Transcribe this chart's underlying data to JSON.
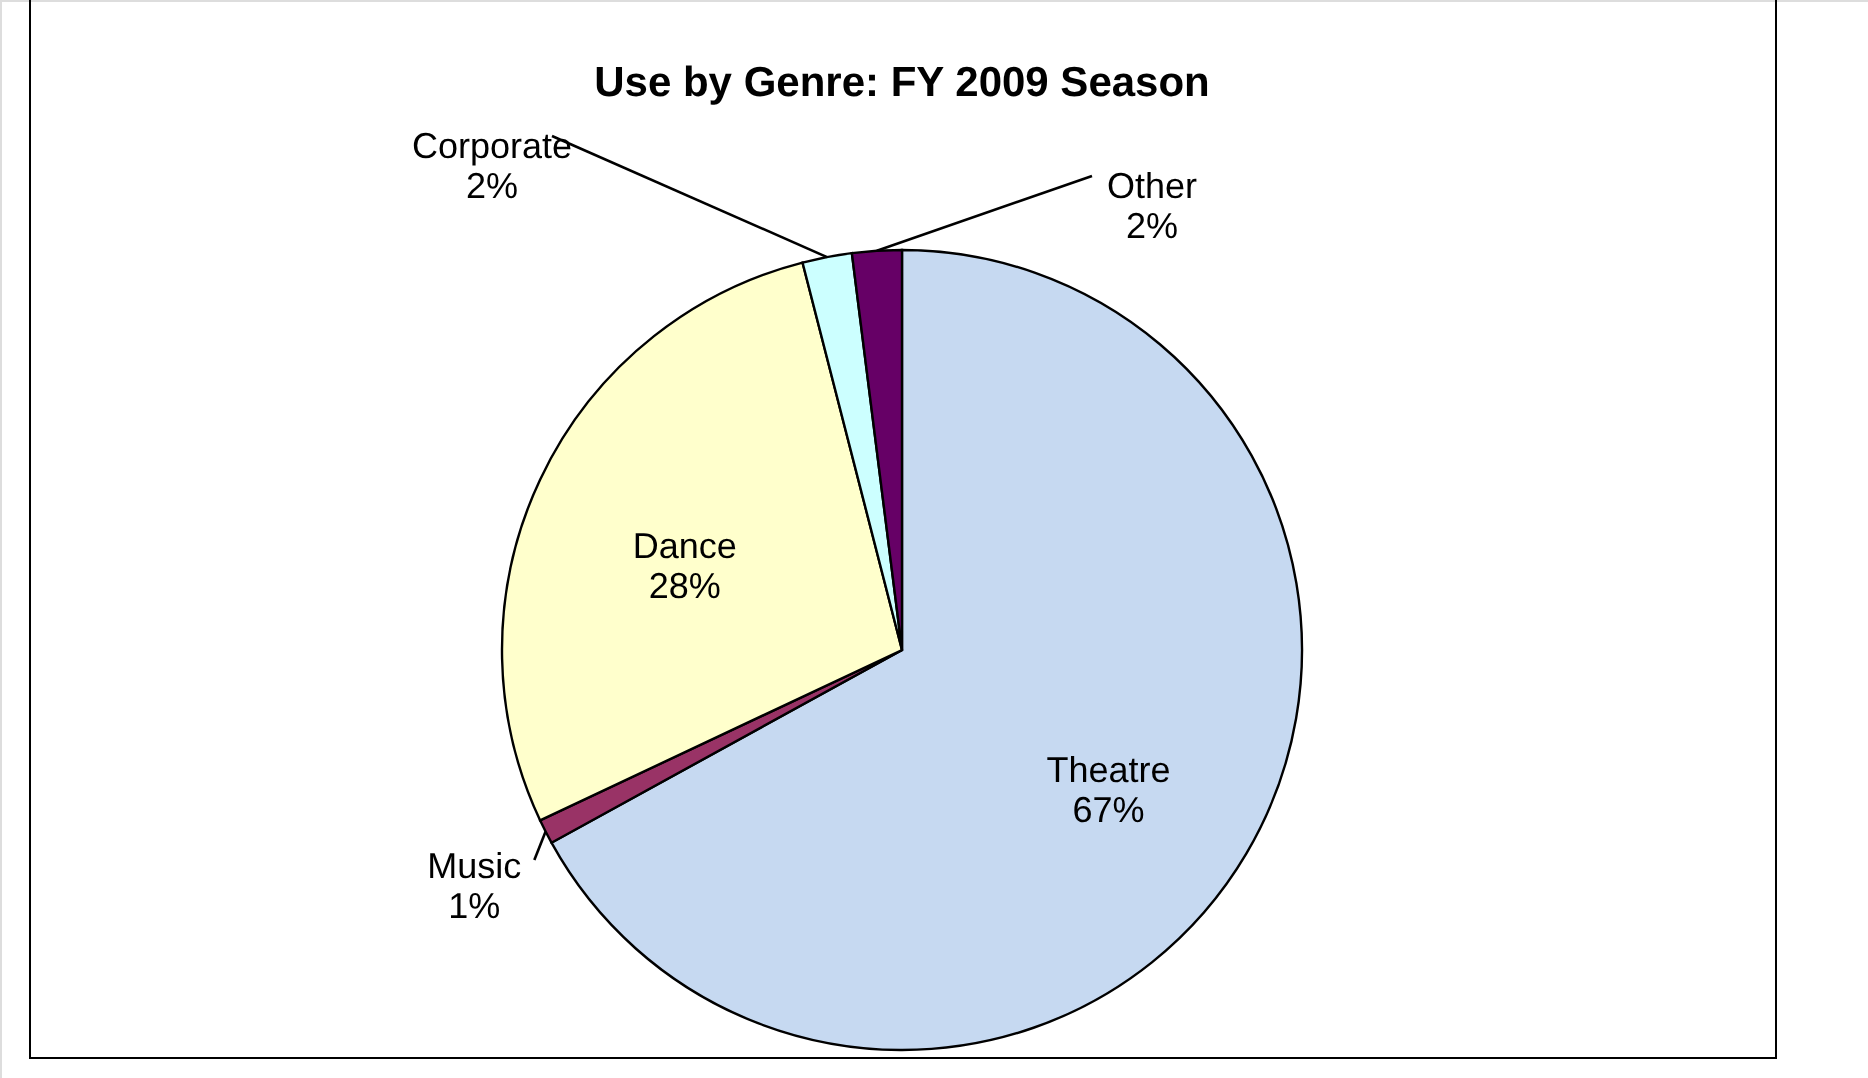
{
  "chart_data": {
    "type": "pie",
    "title": "Use by Genre:  FY 2009 Season",
    "categories": [
      "Theatre",
      "Music",
      "Dance",
      "Corporate",
      "Other"
    ],
    "values": [
      67,
      1,
      28,
      2,
      2
    ],
    "value_labels": [
      "67%",
      "1%",
      "28%",
      "2%",
      "2%"
    ],
    "colors": [
      "#c6d9f1",
      "#993366",
      "#ffffcc",
      "#ccffff",
      "#660066"
    ]
  }
}
